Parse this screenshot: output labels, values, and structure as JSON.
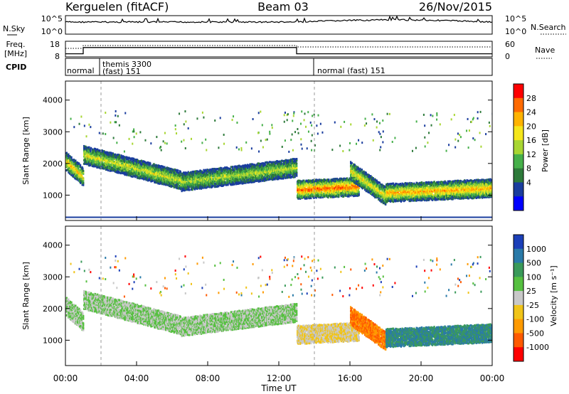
{
  "header": {
    "station": "Kerguelen (fitACF)",
    "beam": "Beam 03",
    "date": "26/Nov/2015"
  },
  "nsky_panel": {
    "left_label": "N.Sky",
    "left_ticks": [
      "10^5",
      "10^0"
    ],
    "right_label": "N.Search",
    "right_ticks": [
      "10^5",
      "10^0"
    ]
  },
  "freq_panel": {
    "left_label_line1": "Freq.",
    "left_label_line2": "[MHz]",
    "left_ticks": [
      "18",
      "8"
    ],
    "right_label": "Nave",
    "right_ticks": [
      "60",
      "0"
    ]
  },
  "cpid_panel": {
    "label": "CPID",
    "modes": [
      {
        "line1": "normal",
        "line2": ""
      },
      {
        "line1": "themis 3300",
        "line2": "(fast) 151"
      },
      {
        "line1": "normal (fast) 151",
        "line2": ""
      }
    ]
  },
  "power_panel": {
    "ylabel": "Slant Range [km]",
    "yticks": [
      "4000",
      "3000",
      "2000",
      "1000"
    ],
    "colorbar_label": "Power [dB]",
    "colorbar_ticks": [
      "28",
      "24",
      "20",
      "16",
      "12",
      "8",
      "4"
    ],
    "colors": [
      "#0000ff",
      "#1a3d9e",
      "#2d7a3a",
      "#46b04a",
      "#a8d632",
      "#f5e61b",
      "#ffb300",
      "#ff6a00",
      "#ff0000"
    ]
  },
  "velocity_panel": {
    "ylabel": "Slant Range [km]",
    "yticks": [
      "4000",
      "3000",
      "2000",
      "1000"
    ],
    "colorbar_label": "Velocity [m s⁻¹]",
    "colorbar_ticks": [
      "1000",
      "500",
      "100",
      "25",
      "-25",
      "-100",
      "-500",
      "-1000"
    ],
    "colors": [
      "#1b3fb8",
      "#2a7aa8",
      "#3a9a5a",
      "#56c040",
      "#c8c8c8",
      "#f0c419",
      "#ff9a00",
      "#ff5a00",
      "#ff0000"
    ]
  },
  "xaxis": {
    "label": "Time UT",
    "ticks": [
      "00:00",
      "04:00",
      "08:00",
      "12:00",
      "16:00",
      "20:00",
      "00:00"
    ]
  },
  "chart_data": {
    "type": "heatmap",
    "title": "Kerguelen (fitACF)  Beam 03  26/Nov/2015",
    "xlabel": "Time UT",
    "ylabel": "Slant Range [km]",
    "xlim": [
      0,
      24
    ],
    "ylim": [
      200,
      4600
    ],
    "frequency_mhz": [
      {
        "start_h": 0,
        "end_h": 1.0,
        "value": 10
      },
      {
        "start_h": 1.0,
        "end_h": 13.0,
        "value": 14
      },
      {
        "start_h": 13.0,
        "end_h": 24,
        "value": 10
      }
    ],
    "cpid_modes": [
      {
        "start_h": 0,
        "end_h": 2.0,
        "name": "normal"
      },
      {
        "start_h": 2.0,
        "end_h": 14.0,
        "name": "themis 3300 (fast) 151"
      },
      {
        "start_h": 14.0,
        "end_h": 24,
        "name": "normal (fast) 151"
      }
    ],
    "echo_bands": [
      {
        "start_h": 0.0,
        "end_h": 1.0,
        "range_from_km": 2100,
        "range_to_km": 1600,
        "power_db": 22,
        "velocity": 0
      },
      {
        "start_h": 1.0,
        "end_h": 6.5,
        "range_from_km": 2300,
        "range_to_km": 1500,
        "power_db": 18,
        "velocity": 0
      },
      {
        "start_h": 6.5,
        "end_h": 13.0,
        "range_from_km": 1450,
        "range_to_km": 1900,
        "power_db": 16,
        "velocity": 0
      },
      {
        "start_h": 13.0,
        "end_h": 16.5,
        "range_from_km": 1200,
        "range_to_km": 1300,
        "power_db": 28,
        "velocity": -25
      },
      {
        "start_h": 16.0,
        "end_h": 18.0,
        "range_from_km": 1800,
        "range_to_km": 1000,
        "power_db": 20,
        "velocity": -500
      },
      {
        "start_h": 18.0,
        "end_h": 24.0,
        "range_from_km": 1100,
        "range_to_km": 1250,
        "power_db": 24,
        "velocity": 100
      }
    ]
  }
}
